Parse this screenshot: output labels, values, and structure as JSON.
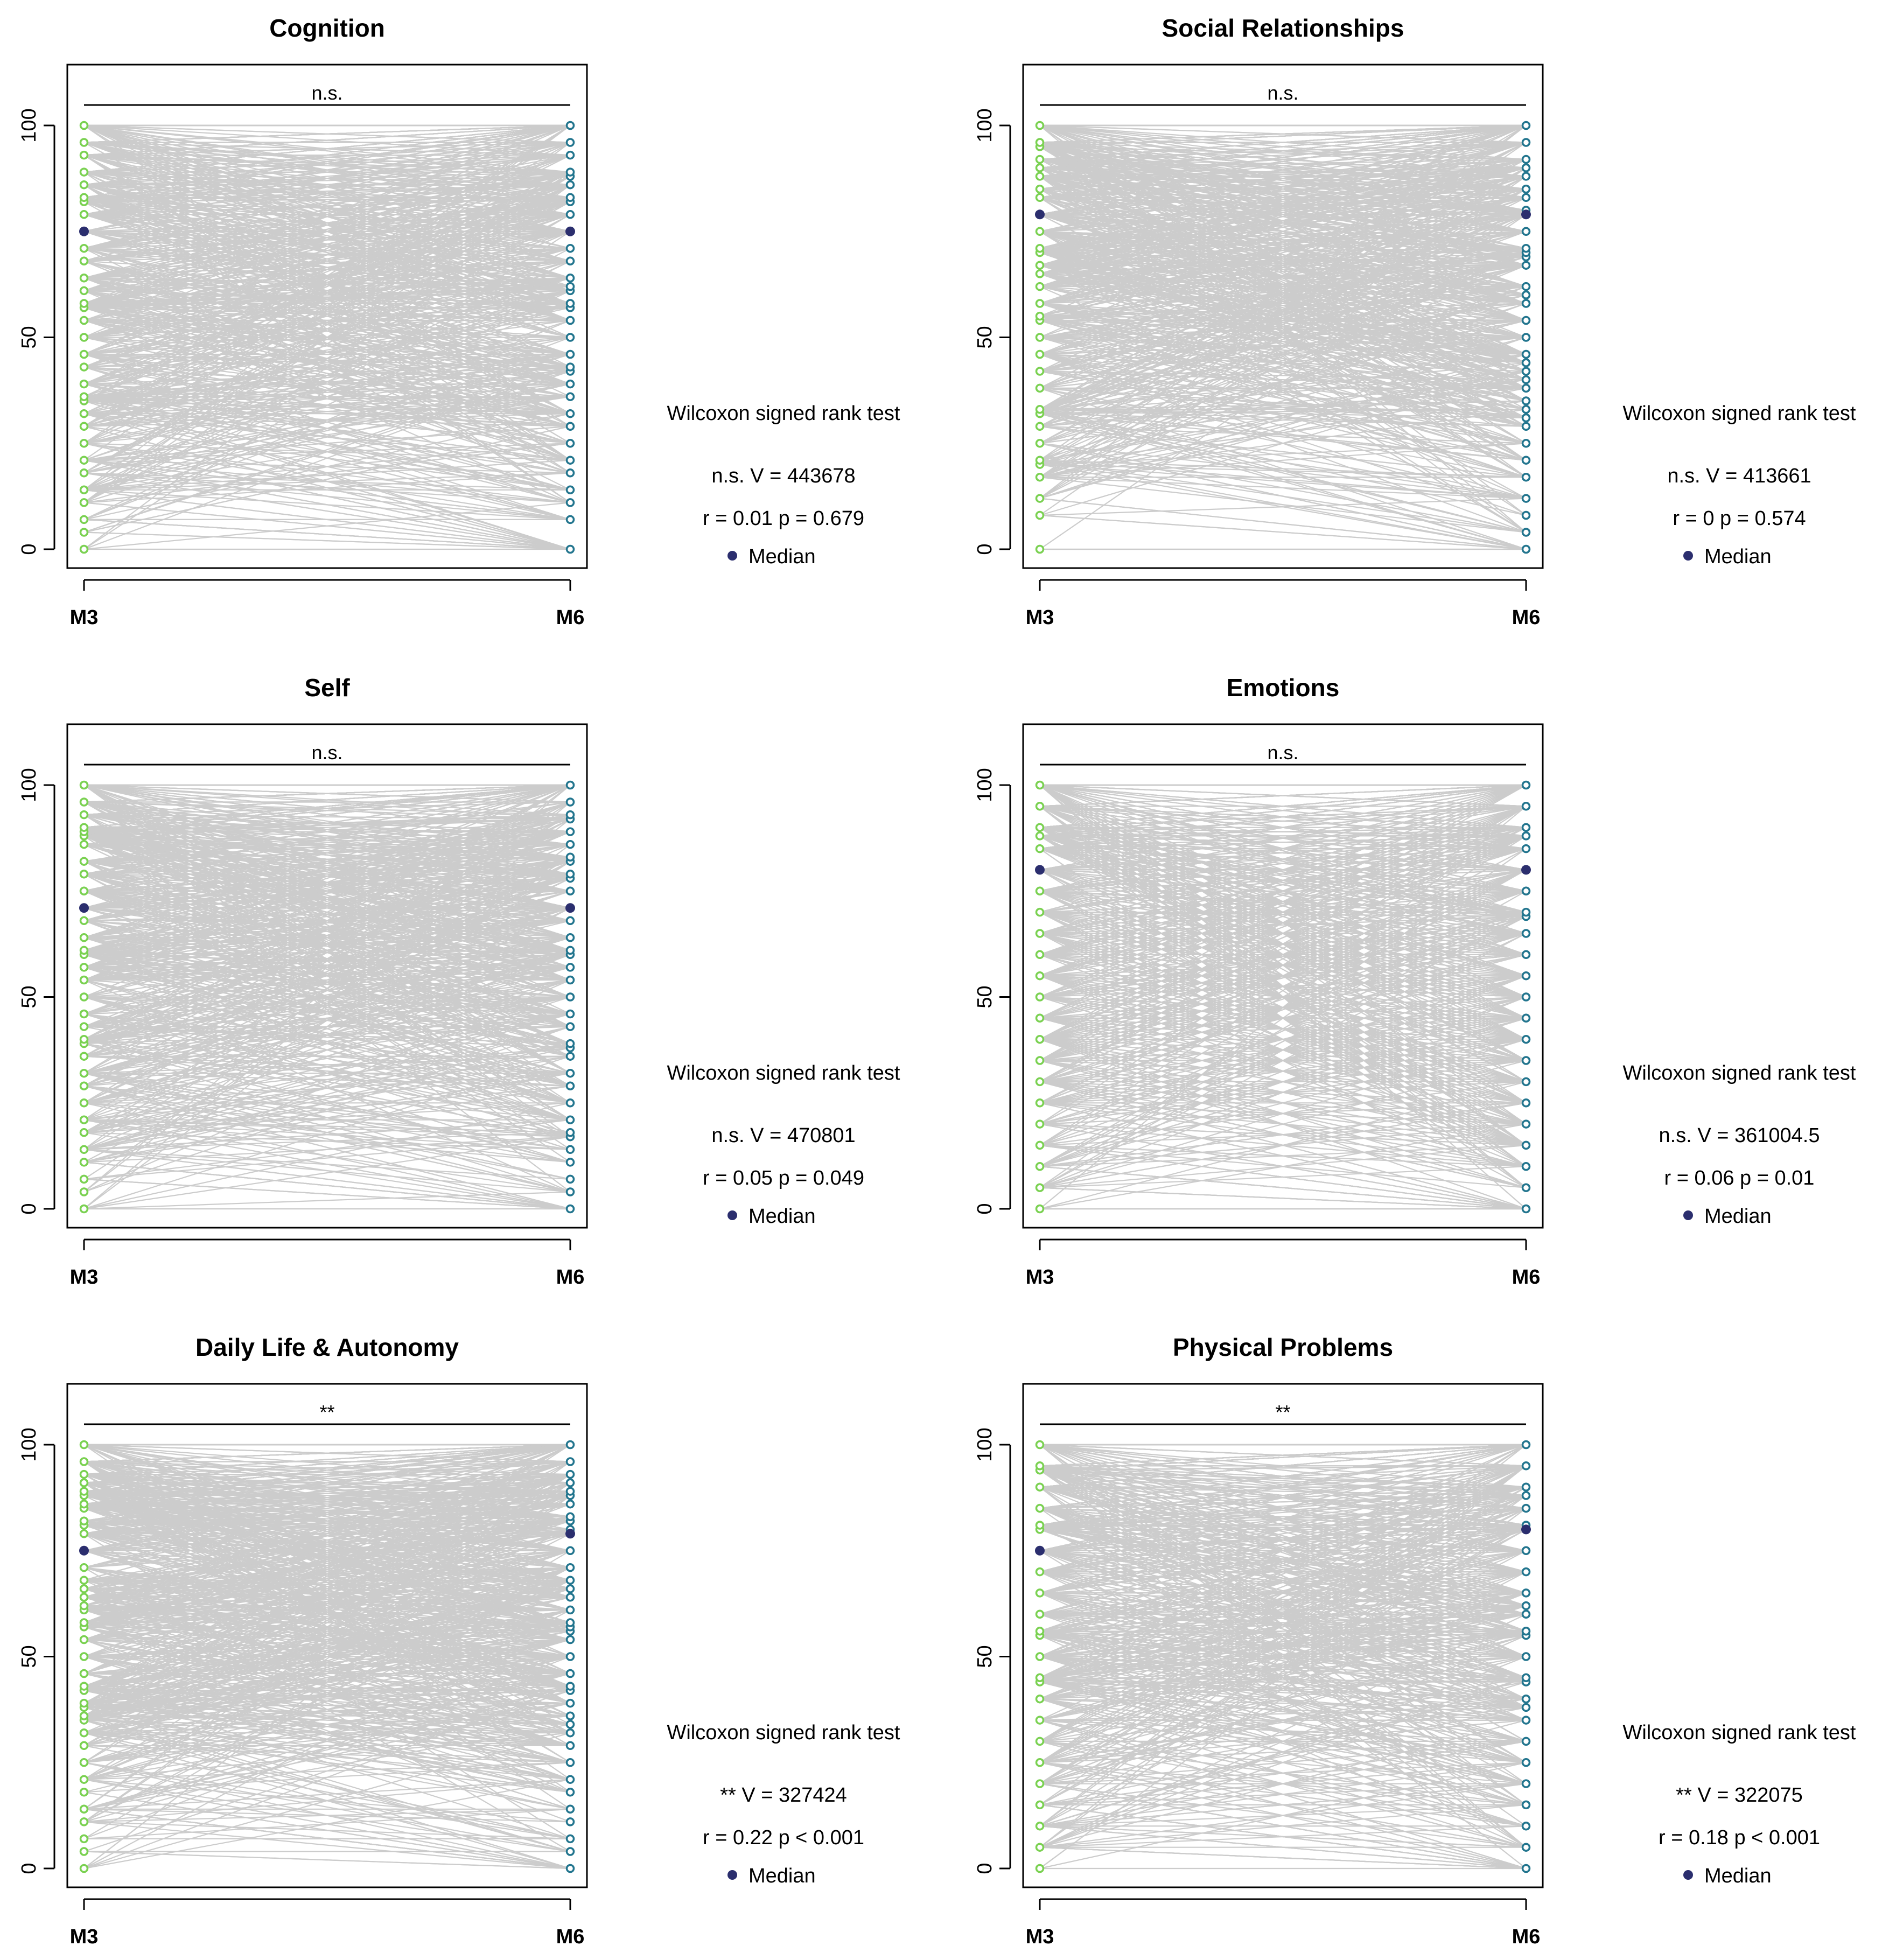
{
  "figure": {
    "colors": {
      "m3_points": "#7ad151",
      "m6_points": "#22758e",
      "median": "#2b2e6e",
      "lines": "#cccccc",
      "axis": "#000000"
    },
    "stats_labels": {
      "test": "Wilcoxon signed rank test",
      "median": "Median"
    }
  },
  "chart_data": [
    {
      "type": "line",
      "title": "Cognition",
      "x": [
        "M3",
        "M6"
      ],
      "yticks": [
        0,
        50,
        100
      ],
      "ylim": [
        0,
        100
      ],
      "significance": "n.s.",
      "stats": {
        "line1": "n.s. V = 443678",
        "line2": "r = 0.01 p = 0.679"
      },
      "median": {
        "M3": 75,
        "M6": 75
      },
      "m3_levels": [
        0,
        4,
        7,
        11,
        14,
        18,
        21,
        25,
        29,
        32,
        35,
        36,
        39,
        43,
        46,
        50,
        54,
        57,
        58,
        61,
        64,
        68,
        71,
        75,
        79,
        82,
        83,
        86,
        89,
        93,
        96,
        100
      ],
      "m6_levels": [
        0,
        7,
        11,
        14,
        18,
        21,
        25,
        29,
        32,
        36,
        39,
        42,
        43,
        46,
        50,
        54,
        57,
        58,
        61,
        62,
        64,
        68,
        71,
        75,
        79,
        82,
        83,
        86,
        88,
        89,
        93,
        96,
        100
      ]
    },
    {
      "type": "line",
      "title": "Social Relationships",
      "x": [
        "M3",
        "M6"
      ],
      "yticks": [
        0,
        50,
        100
      ],
      "ylim": [
        0,
        100
      ],
      "significance": "n.s.",
      "stats": {
        "line1": "n.s. V = 413661",
        "line2": "r = 0 p = 0.574"
      },
      "median": {
        "M3": 79,
        "M6": 79
      },
      "m3_levels": [
        0,
        8,
        12,
        17,
        20,
        21,
        25,
        29,
        32,
        33,
        38,
        42,
        46,
        50,
        54,
        55,
        58,
        62,
        65,
        67,
        70,
        71,
        75,
        79,
        83,
        85,
        88,
        90,
        92,
        95,
        96,
        100
      ],
      "m6_levels": [
        0,
        4,
        8,
        12,
        17,
        21,
        25,
        29,
        31,
        33,
        35,
        38,
        40,
        42,
        44,
        46,
        50,
        54,
        58,
        60,
        62,
        67,
        69,
        70,
        71,
        75,
        79,
        80,
        83,
        85,
        88,
        90,
        92,
        96,
        100
      ]
    },
    {
      "type": "line",
      "title": "Self",
      "x": [
        "M3",
        "M6"
      ],
      "yticks": [
        0,
        50,
        100
      ],
      "ylim": [
        0,
        100
      ],
      "significance": "n.s.",
      "stats": {
        "line1": "n.s. V = 470801",
        "line2": "r = 0.05 p = 0.049"
      },
      "median": {
        "M3": 71,
        "M6": 71
      },
      "m3_levels": [
        0,
        4,
        7,
        11,
        14,
        18,
        21,
        25,
        29,
        32,
        36,
        39,
        40,
        43,
        46,
        50,
        54,
        57,
        60,
        61,
        64,
        68,
        71,
        75,
        79,
        82,
        86,
        88,
        89,
        90,
        93,
        96,
        100
      ],
      "m6_levels": [
        0,
        4,
        7,
        11,
        14,
        17,
        18,
        21,
        25,
        29,
        32,
        36,
        38,
        39,
        43,
        46,
        50,
        54,
        57,
        60,
        61,
        64,
        68,
        71,
        75,
        78,
        79,
        82,
        83,
        86,
        89,
        92,
        93,
        96,
        100
      ]
    },
    {
      "type": "line",
      "title": "Emotions",
      "x": [
        "M3",
        "M6"
      ],
      "yticks": [
        0,
        50,
        100
      ],
      "ylim": [
        0,
        100
      ],
      "significance": "n.s.",
      "stats": {
        "line1": "n.s. V = 361004.5",
        "line2": "r = 0.06 p = 0.01"
      },
      "median": {
        "M3": 80,
        "M6": 80
      },
      "m3_levels": [
        0,
        5,
        10,
        15,
        20,
        25,
        30,
        35,
        40,
        45,
        50,
        55,
        60,
        65,
        70,
        75,
        80,
        85,
        88,
        90,
        95,
        100
      ],
      "m6_levels": [
        0,
        5,
        10,
        15,
        20,
        25,
        30,
        35,
        40,
        45,
        50,
        55,
        60,
        65,
        69,
        70,
        75,
        80,
        85,
        88,
        90,
        95,
        100
      ]
    },
    {
      "type": "line",
      "title": "Daily Life & Autonomy",
      "x": [
        "M3",
        "M6"
      ],
      "yticks": [
        0,
        50,
        100
      ],
      "ylim": [
        0,
        100
      ],
      "significance": "**",
      "stats": {
        "line1": "** V = 327424",
        "line2": "r = 0.22 p < 0.001"
      },
      "median": {
        "M3": 75,
        "M6": 79
      },
      "m3_levels": [
        0,
        4,
        7,
        11,
        14,
        18,
        21,
        25,
        29,
        32,
        35,
        36,
        38,
        39,
        42,
        43,
        46,
        50,
        54,
        57,
        58,
        61,
        62,
        64,
        66,
        68,
        71,
        75,
        79,
        81,
        82,
        85,
        86,
        88,
        89,
        91,
        93,
        96,
        100
      ],
      "m6_levels": [
        0,
        4,
        7,
        11,
        14,
        18,
        21,
        25,
        29,
        32,
        34,
        36,
        39,
        42,
        43,
        46,
        50,
        54,
        56,
        57,
        58,
        61,
        64,
        66,
        68,
        71,
        75,
        79,
        80,
        82,
        83,
        86,
        88,
        89,
        91,
        93,
        96,
        100
      ]
    },
    {
      "type": "line",
      "title": "Physical Problems",
      "x": [
        "M3",
        "M6"
      ],
      "yticks": [
        0,
        50,
        100
      ],
      "ylim": [
        0,
        100
      ],
      "significance": "**",
      "stats": {
        "line1": "** V = 322075",
        "line2": "r = 0.18 p < 0.001"
      },
      "median": {
        "M3": 75,
        "M6": 80
      },
      "m3_levels": [
        0,
        5,
        10,
        15,
        20,
        25,
        30,
        35,
        40,
        44,
        45,
        50,
        55,
        56,
        60,
        65,
        70,
        75,
        80,
        81,
        85,
        90,
        94,
        95,
        100
      ],
      "m6_levels": [
        0,
        5,
        10,
        15,
        20,
        25,
        30,
        35,
        38,
        40,
        44,
        45,
        50,
        55,
        56,
        60,
        62,
        65,
        70,
        75,
        80,
        81,
        85,
        88,
        90,
        95,
        100
      ]
    }
  ]
}
